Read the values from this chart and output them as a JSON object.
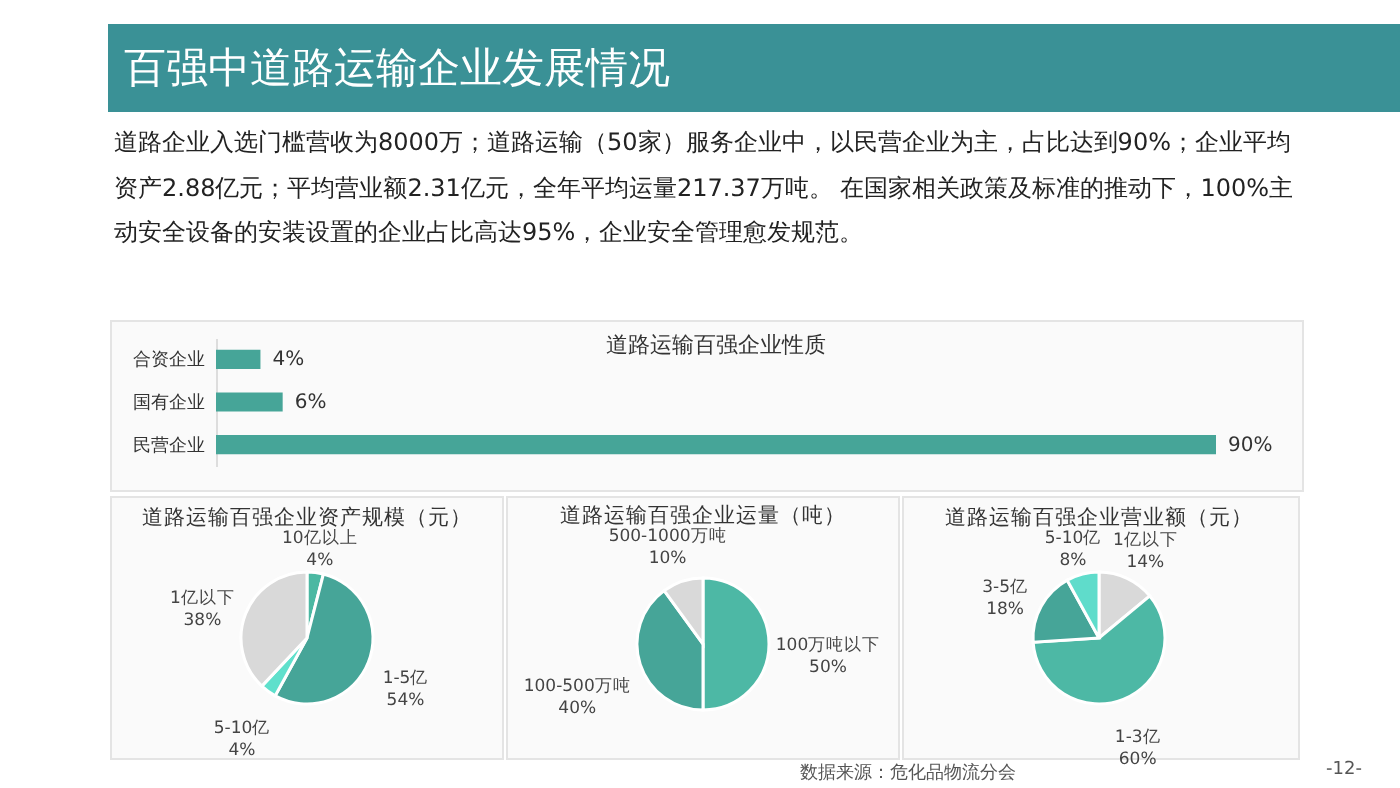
{
  "chart_data": [
    {
      "type": "other",
      "title": "百强中道路运输企业发展情况",
      "annotations": [
        "道路企业入选门槛营收为8000万；道路运输（50家）服务企业中，以民营企业为主，占比达到90%；企业平均资产2.88亿元；平均营业额2.31亿元，全年平均运量217.37万吨。 在国家相关政策及标准的推动下，100%主动安全设备的安装设置的企业占比高达95%，企业安全管理愈发规范。",
        "数据来源：危化品物流分会",
        "-12-"
      ]
    },
    {
      "type": "bar",
      "orientation": "horizontal",
      "title": "道路运输百强企业性质",
      "categories": [
        "合资企业",
        "国有企业",
        "民营企业"
      ],
      "values": [
        4,
        6,
        90
      ],
      "value_labels": [
        "4%",
        "6%",
        "90%"
      ],
      "color": "#46a598"
    },
    {
      "type": "pie",
      "title": "道路运输百强企业资产规模（元）",
      "categories": [
        "10亿以上",
        "1-5亿",
        "5-10亿",
        "1亿以下"
      ],
      "values": [
        4,
        54,
        4,
        38
      ],
      "value_labels": [
        "4%",
        "54%",
        "4%",
        "38%"
      ],
      "colors": [
        "#4bb8a2",
        "#46a598",
        "#5fe0cc",
        "#d9d9d9"
      ]
    },
    {
      "type": "pie",
      "title": "道路运输百强企业运量（吨）",
      "categories": [
        "100万吨以下",
        "100-500万吨",
        "500-1000万吨"
      ],
      "values": [
        50,
        40,
        10
      ],
      "value_labels": [
        "50%",
        "40%",
        "10%"
      ],
      "colors": [
        "#4db8a5",
        "#46a598",
        "#d9d9d9"
      ]
    },
    {
      "type": "pie",
      "title": "道路运输百强企业营业额（元）",
      "categories": [
        "1亿以下",
        "1-3亿",
        "3-5亿",
        "5-10亿"
      ],
      "values": [
        14,
        60,
        18,
        8
      ],
      "value_labels": [
        "14%",
        "60%",
        "18%",
        "8%"
      ],
      "colors": [
        "#d9d9d9",
        "#4db8a5",
        "#46a598",
        "#5fdccb"
      ]
    }
  ]
}
